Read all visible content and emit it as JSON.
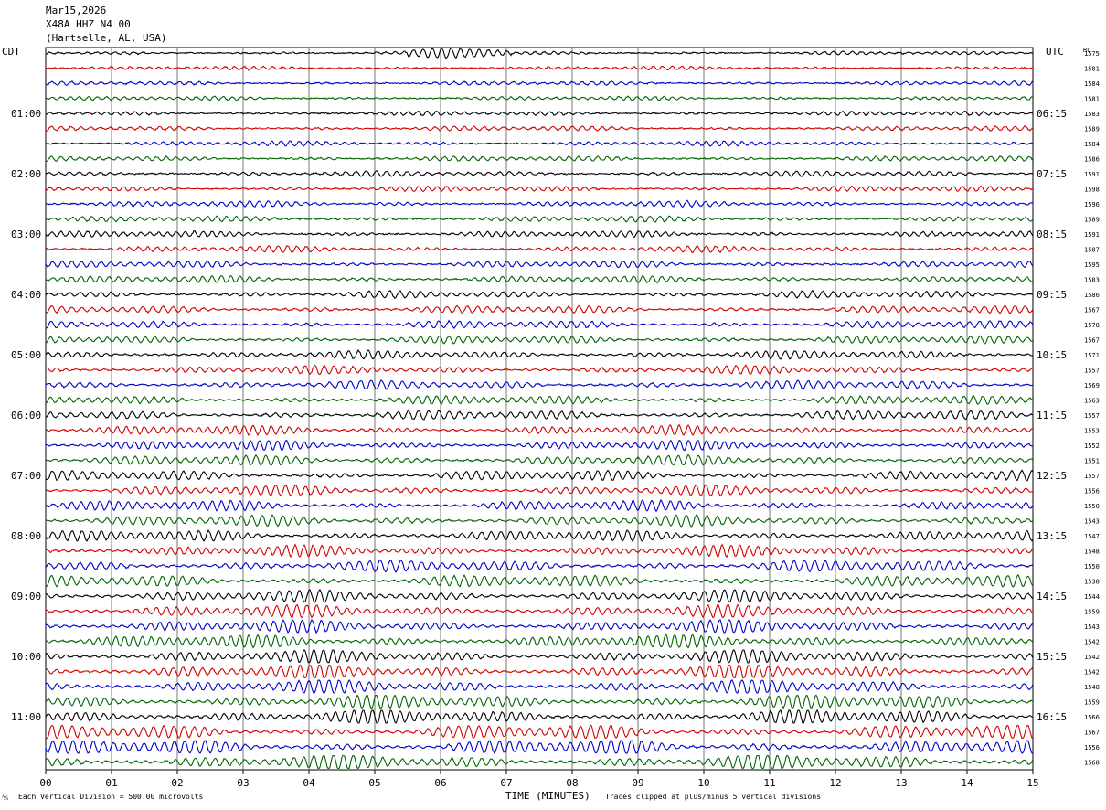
{
  "header": {
    "date": "Mar15,2026",
    "station": "X48A HHZ N4 00",
    "location": "(Hartselle, AL, USA)"
  },
  "left_tz": "CDT",
  "right_tz": "UTC",
  "rms_header": "RC",
  "footer": {
    "scale_note": "Each Vertical Division =  500.00 microvolts",
    "clip_note": "Traces clipped at plus/minus 5 vertical divisions"
  },
  "chart_data": {
    "type": "line",
    "title": "Mar15,2026 X48A HHZ N4 00 (Hartselle, AL, USA)",
    "xlabel": "TIME (MINUTES)",
    "xlim": [
      0,
      15
    ],
    "x_ticks": [
      "00",
      "01",
      "02",
      "03",
      "04",
      "05",
      "06",
      "07",
      "08",
      "09",
      "10",
      "11",
      "12",
      "13",
      "14",
      "15"
    ],
    "trace_colors": [
      "#000000",
      "#d00000",
      "#0000c8",
      "#006400"
    ],
    "left_hour_labels": [
      "01:00",
      "02:00",
      "03:00",
      "04:00",
      "05:00",
      "06:00",
      "07:00",
      "08:00",
      "09:00",
      "10:00",
      "11:00"
    ],
    "right_hour_labels": [
      "06:15",
      "07:15",
      "08:15",
      "09:15",
      "10:15",
      "11:15",
      "12:15",
      "13:15",
      "14:15",
      "15:15",
      "16:15"
    ],
    "row_values": [
      1575,
      1581,
      1584,
      1581,
      1583,
      1589,
      1584,
      1586,
      1591,
      1598,
      1596,
      1589,
      1591,
      1587,
      1595,
      1583,
      1586,
      1567,
      1578,
      1567,
      1571,
      1557,
      1569,
      1563,
      1557,
      1553,
      1552,
      1551,
      1557,
      1556,
      1550,
      1543,
      1547,
      1548,
      1550,
      1538,
      1544,
      1559,
      1543,
      1542,
      1542,
      1542,
      1548,
      1559,
      1566,
      1567,
      1556,
      1568
    ],
    "grid": true
  }
}
